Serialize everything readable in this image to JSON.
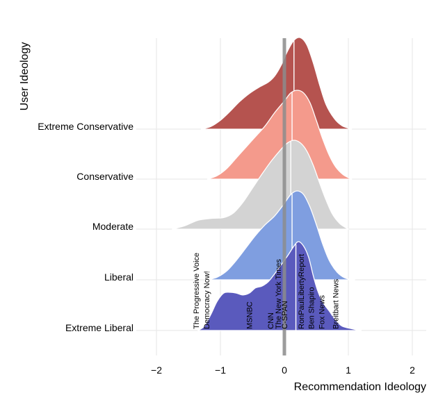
{
  "chart_data": {
    "type": "ridgeline",
    "title": "",
    "xlabel": "Recommendation Ideology",
    "ylabel": "User Ideology",
    "xlim": [
      -2.0,
      2.2
    ],
    "xticks": [
      -2,
      -1,
      0,
      1,
      2
    ],
    "xtick_labels": [
      "−2",
      "−1",
      "0",
      "1",
      "2"
    ],
    "grid": true,
    "reference_line_x": 0,
    "series": [
      {
        "name": "Extreme Conservative",
        "color": "#b5534f",
        "median": 0.15,
        "density": [
          [
            -1.3,
            0
          ],
          [
            -1.15,
            0.03
          ],
          [
            -1.0,
            0.1
          ],
          [
            -0.85,
            0.2
          ],
          [
            -0.7,
            0.31
          ],
          [
            -0.55,
            0.4
          ],
          [
            -0.4,
            0.47
          ],
          [
            -0.25,
            0.53
          ],
          [
            -0.15,
            0.6
          ],
          [
            -0.05,
            0.72
          ],
          [
            0.05,
            0.88
          ],
          [
            0.15,
            1.0
          ],
          [
            0.25,
            1.03
          ],
          [
            0.35,
            0.95
          ],
          [
            0.45,
            0.75
          ],
          [
            0.55,
            0.5
          ],
          [
            0.65,
            0.28
          ],
          [
            0.78,
            0.12
          ],
          [
            0.9,
            0.04
          ],
          [
            1.05,
            0
          ]
        ]
      },
      {
        "name": "Conservative",
        "color": "#f49a8c",
        "median": 0.12,
        "density": [
          [
            -1.2,
            0
          ],
          [
            -1.05,
            0.04
          ],
          [
            -0.9,
            0.12
          ],
          [
            -0.75,
            0.24
          ],
          [
            -0.6,
            0.36
          ],
          [
            -0.45,
            0.48
          ],
          [
            -0.3,
            0.6
          ],
          [
            -0.15,
            0.75
          ],
          [
            0,
            0.88
          ],
          [
            0.1,
            0.97
          ],
          [
            0.2,
            1.0
          ],
          [
            0.3,
            0.97
          ],
          [
            0.4,
            0.86
          ],
          [
            0.5,
            0.66
          ],
          [
            0.6,
            0.45
          ],
          [
            0.7,
            0.27
          ],
          [
            0.8,
            0.14
          ],
          [
            0.92,
            0.05
          ],
          [
            1.05,
            0
          ]
        ]
      },
      {
        "name": "Moderate",
        "color": "#d3d3d3",
        "median": 0.1,
        "density": [
          [
            -1.75,
            0
          ],
          [
            -1.55,
            0.04
          ],
          [
            -1.35,
            0.1
          ],
          [
            -1.15,
            0.12
          ],
          [
            -0.95,
            0.13
          ],
          [
            -0.8,
            0.18
          ],
          [
            -0.65,
            0.3
          ],
          [
            -0.5,
            0.46
          ],
          [
            -0.35,
            0.62
          ],
          [
            -0.2,
            0.77
          ],
          [
            -0.05,
            0.9
          ],
          [
            0.05,
            0.97
          ],
          [
            0.15,
            1.0
          ],
          [
            0.25,
            0.97
          ],
          [
            0.35,
            0.88
          ],
          [
            0.45,
            0.72
          ],
          [
            0.55,
            0.52
          ],
          [
            0.65,
            0.33
          ],
          [
            0.75,
            0.17
          ],
          [
            0.87,
            0.06
          ],
          [
            1.0,
            0
          ]
        ]
      },
      {
        "name": "Liberal",
        "color": "#7f9ee0",
        "median": 0.12,
        "density": [
          [
            -1.2,
            0
          ],
          [
            -1.05,
            0.03
          ],
          [
            -0.9,
            0.1
          ],
          [
            -0.75,
            0.22
          ],
          [
            -0.6,
            0.36
          ],
          [
            -0.45,
            0.5
          ],
          [
            -0.3,
            0.62
          ],
          [
            -0.15,
            0.72
          ],
          [
            0,
            0.86
          ],
          [
            0.1,
            0.96
          ],
          [
            0.2,
            1.0
          ],
          [
            0.3,
            0.96
          ],
          [
            0.4,
            0.82
          ],
          [
            0.5,
            0.62
          ],
          [
            0.6,
            0.4
          ],
          [
            0.7,
            0.22
          ],
          [
            0.82,
            0.09
          ],
          [
            0.95,
            0.02
          ],
          [
            1.1,
            0
          ]
        ]
      },
      {
        "name": "Extreme Liberal",
        "color": "#5a5abd",
        "median": 0.18,
        "density": [
          [
            -1.35,
            0
          ],
          [
            -1.25,
            0.05
          ],
          [
            -1.15,
            0.18
          ],
          [
            -1.05,
            0.33
          ],
          [
            -0.95,
            0.42
          ],
          [
            -0.85,
            0.43
          ],
          [
            -0.75,
            0.42
          ],
          [
            -0.65,
            0.4
          ],
          [
            -0.55,
            0.42
          ],
          [
            -0.45,
            0.48
          ],
          [
            -0.35,
            0.5
          ],
          [
            -0.25,
            0.55
          ],
          [
            -0.15,
            0.64
          ],
          [
            -0.05,
            0.74
          ],
          [
            0.05,
            0.84
          ],
          [
            0.15,
            0.95
          ],
          [
            0.22,
            1.0
          ],
          [
            0.3,
            0.95
          ],
          [
            0.38,
            0.82
          ],
          [
            0.45,
            0.62
          ],
          [
            0.52,
            0.45
          ],
          [
            0.6,
            0.32
          ],
          [
            0.7,
            0.22
          ],
          [
            0.8,
            0.12
          ],
          [
            0.9,
            0.05
          ],
          [
            1.05,
            0.02
          ],
          [
            1.2,
            0
          ]
        ]
      }
    ],
    "annotations": [
      {
        "text": "The Progressive Voice",
        "x": -1.38
      },
      {
        "text": "Democracy Now!",
        "x": -1.22
      },
      {
        "text": "MSNBC",
        "x": -0.55
      },
      {
        "text": "CNN",
        "x": -0.22
      },
      {
        "text": "The New York Times",
        "x": -0.1
      },
      {
        "text": "C-SPAN",
        "x": 0.0
      },
      {
        "text": "RonPaulLibertyReport",
        "x": 0.26
      },
      {
        "text": "Ben Shapiro",
        "x": 0.42
      },
      {
        "text": "Fox News",
        "x": 0.58
      },
      {
        "text": "Breitbart News",
        "x": 0.8
      }
    ]
  }
}
